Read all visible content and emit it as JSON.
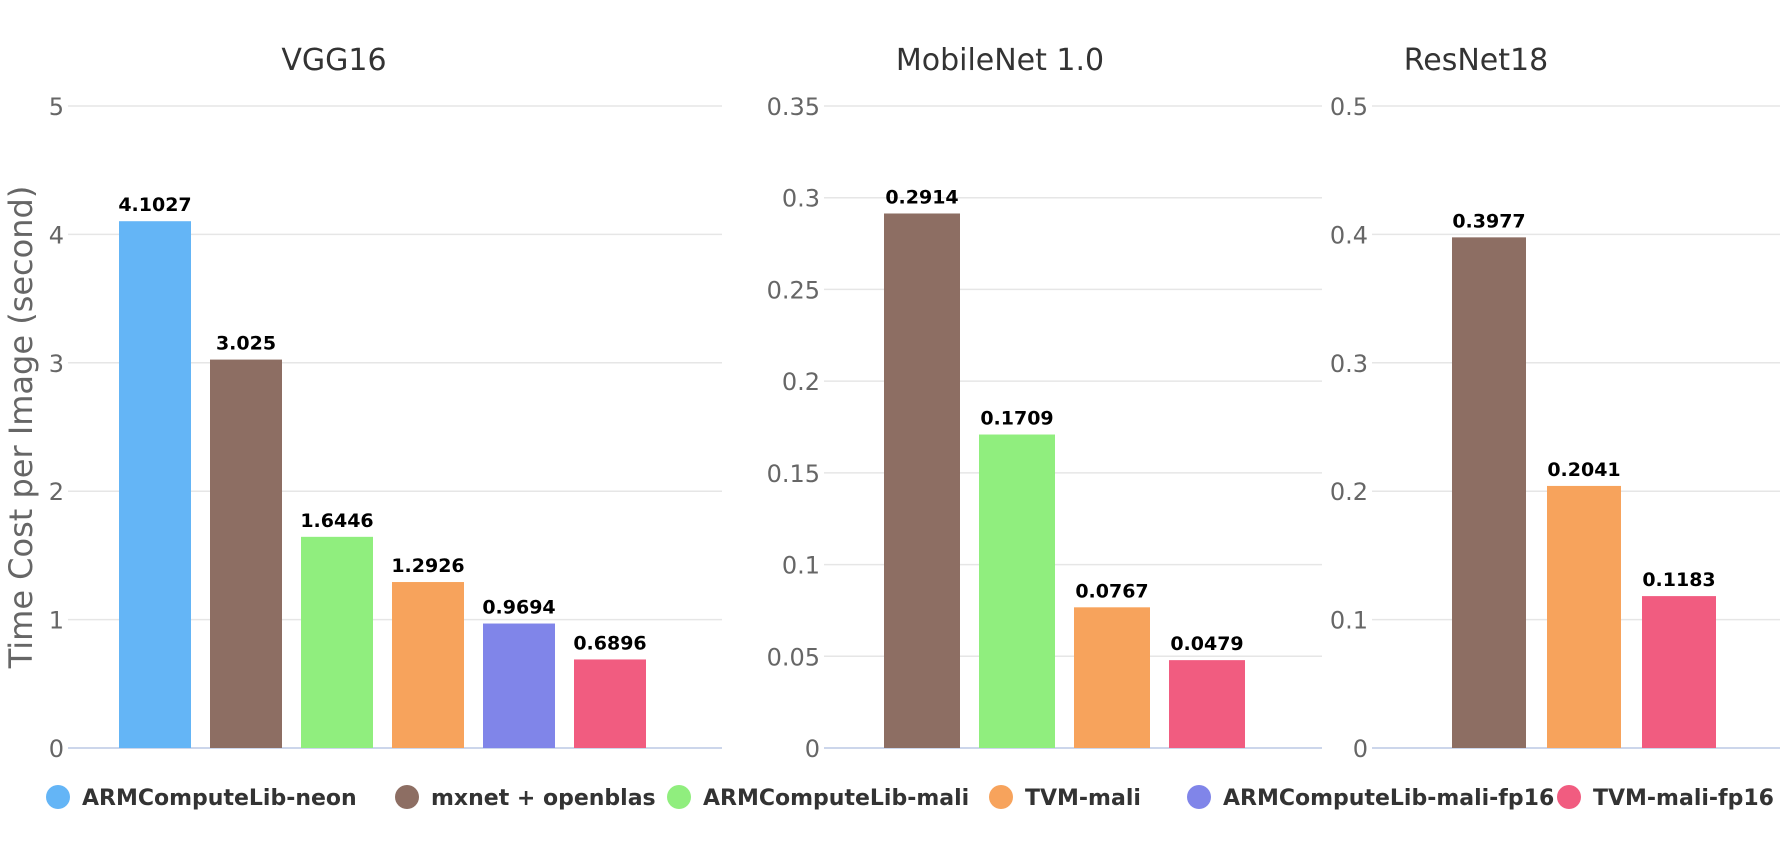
{
  "chart_data": {
    "type": "bar",
    "ylabel": "Time Cost per Image (second)",
    "series_colors": {
      "ARMComputeLib-neon": "#64b5f6",
      "mxnet + openblas": "#8d6e63",
      "ARMComputeLib-mali": "#90ee7e",
      "TVM-mali": "#f7a35c",
      "ARMComputeLib-mali-fp16": "#8085e9",
      "TVM-mali-fp16": "#f15c80"
    },
    "legend": [
      "ARMComputeLib-neon",
      "mxnet + openblas",
      "ARMComputeLib-mali",
      "TVM-mali",
      "ARMComputeLib-mali-fp16",
      "TVM-mali-fp16"
    ],
    "panels": [
      {
        "title": "VGG16",
        "ylim": [
          0,
          5
        ],
        "yticks": [
          "0",
          "1",
          "2",
          "3",
          "4",
          "5"
        ],
        "bars": [
          {
            "series": "ARMComputeLib-neon",
            "value": 4.1027,
            "label": "4.1027"
          },
          {
            "series": "mxnet + openblas",
            "value": 3.025,
            "label": "3.025"
          },
          {
            "series": "ARMComputeLib-mali",
            "value": 1.6446,
            "label": "1.6446"
          },
          {
            "series": "TVM-mali",
            "value": 1.2926,
            "label": "1.2926"
          },
          {
            "series": "ARMComputeLib-mali-fp16",
            "value": 0.9694,
            "label": "0.9694"
          },
          {
            "series": "TVM-mali-fp16",
            "value": 0.6896,
            "label": "0.6896"
          }
        ]
      },
      {
        "title": "MobileNet 1.0",
        "ylim": [
          0,
          0.35
        ],
        "yticks": [
          "0",
          "0.05",
          "0.1",
          "0.15",
          "0.2",
          "0.25",
          "0.3",
          "0.35"
        ],
        "bars": [
          {
            "series": "mxnet + openblas",
            "value": 0.2914,
            "label": "0.2914"
          },
          {
            "series": "ARMComputeLib-mali",
            "value": 0.1709,
            "label": "0.1709"
          },
          {
            "series": "TVM-mali",
            "value": 0.0767,
            "label": "0.0767"
          },
          {
            "series": "TVM-mali-fp16",
            "value": 0.0479,
            "label": "0.0479"
          }
        ]
      },
      {
        "title": "ResNet18",
        "ylim": [
          0,
          0.5
        ],
        "yticks": [
          "0",
          "0.1",
          "0.2",
          "0.3",
          "0.4",
          "0.5"
        ],
        "bars": [
          {
            "series": "mxnet + openblas",
            "value": 0.3977,
            "label": "0.3977"
          },
          {
            "series": "TVM-mali",
            "value": 0.2041,
            "label": "0.2041"
          },
          {
            "series": "TVM-mali-fp16",
            "value": 0.1183,
            "label": "0.1183"
          }
        ]
      }
    ]
  }
}
